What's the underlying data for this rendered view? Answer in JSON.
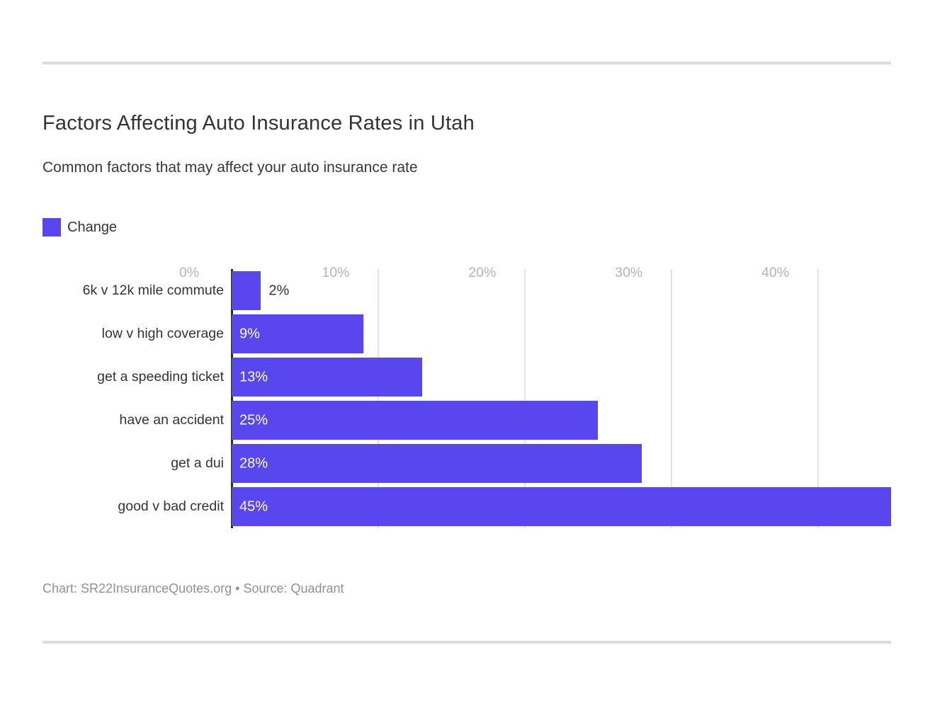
{
  "page": {
    "title": "Factors Affecting Auto Insurance Rates in Utah",
    "subtitle": "Common factors that may affect your auto insurance rate",
    "footer": "Chart: SR22InsuranceQuotes.org • Source: Quadrant"
  },
  "legend": {
    "label": "Change",
    "color": "#5846ee"
  },
  "chart_data": {
    "type": "bar",
    "orientation": "horizontal",
    "title": "Factors Affecting Auto Insurance Rates in Utah",
    "subtitle": "Common factors that may affect your auto insurance rate",
    "series_name": "Change",
    "categories": [
      "6k v 12k mile commute",
      "low v high coverage",
      "get a speeding ticket",
      "have an accident",
      "get a dui",
      "good v bad credit"
    ],
    "values": [
      2,
      9,
      13,
      25,
      28,
      45
    ],
    "value_labels": [
      "2%",
      "9%",
      "13%",
      "25%",
      "28%",
      "45%"
    ],
    "bar_color": "#5846ee",
    "xlim": [
      0,
      45
    ],
    "x_ticks": [
      0,
      10,
      20,
      30,
      40
    ],
    "x_tick_labels": [
      "0%",
      "10%",
      "20%",
      "30%",
      "40%"
    ],
    "grid": true,
    "gridline_color": "#e4e4e4",
    "axis_color": "#2b2b2b",
    "legend_position": "top-left",
    "inside_label_threshold": 5
  }
}
